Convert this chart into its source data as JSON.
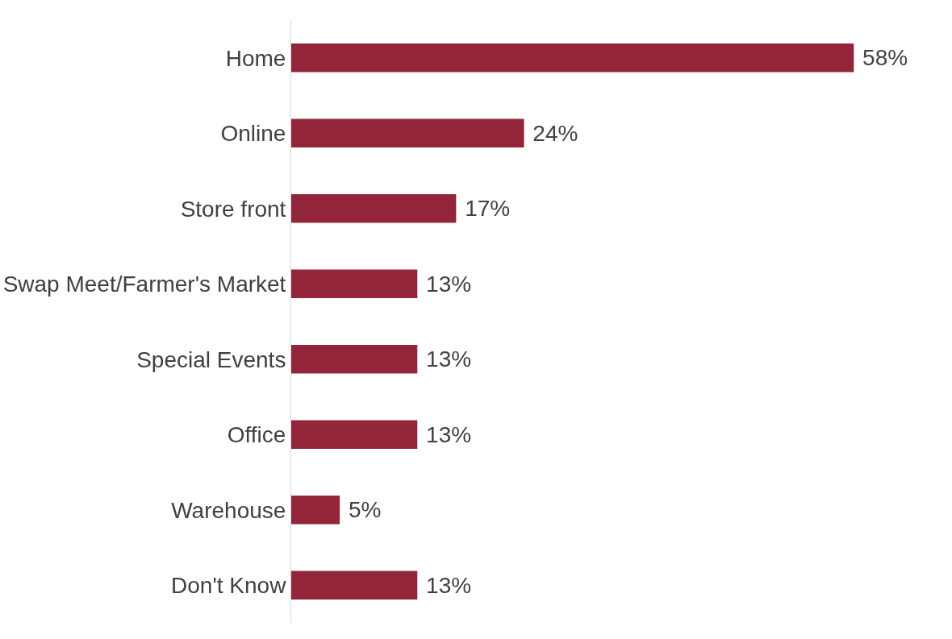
{
  "chart_data": {
    "type": "bar",
    "orientation": "horizontal",
    "categories": [
      "Home",
      "Online",
      "Store front",
      "Swap Meet/Farmer's Market",
      "Special Events",
      "Office",
      "Warehouse",
      "Don't Know"
    ],
    "values": [
      58,
      24,
      17,
      13,
      13,
      13,
      5,
      13
    ],
    "value_labels": [
      "58%",
      "24%",
      "17%",
      "13%",
      "13%",
      "13%",
      "5%",
      "13%"
    ],
    "color": "#92253a"
  }
}
